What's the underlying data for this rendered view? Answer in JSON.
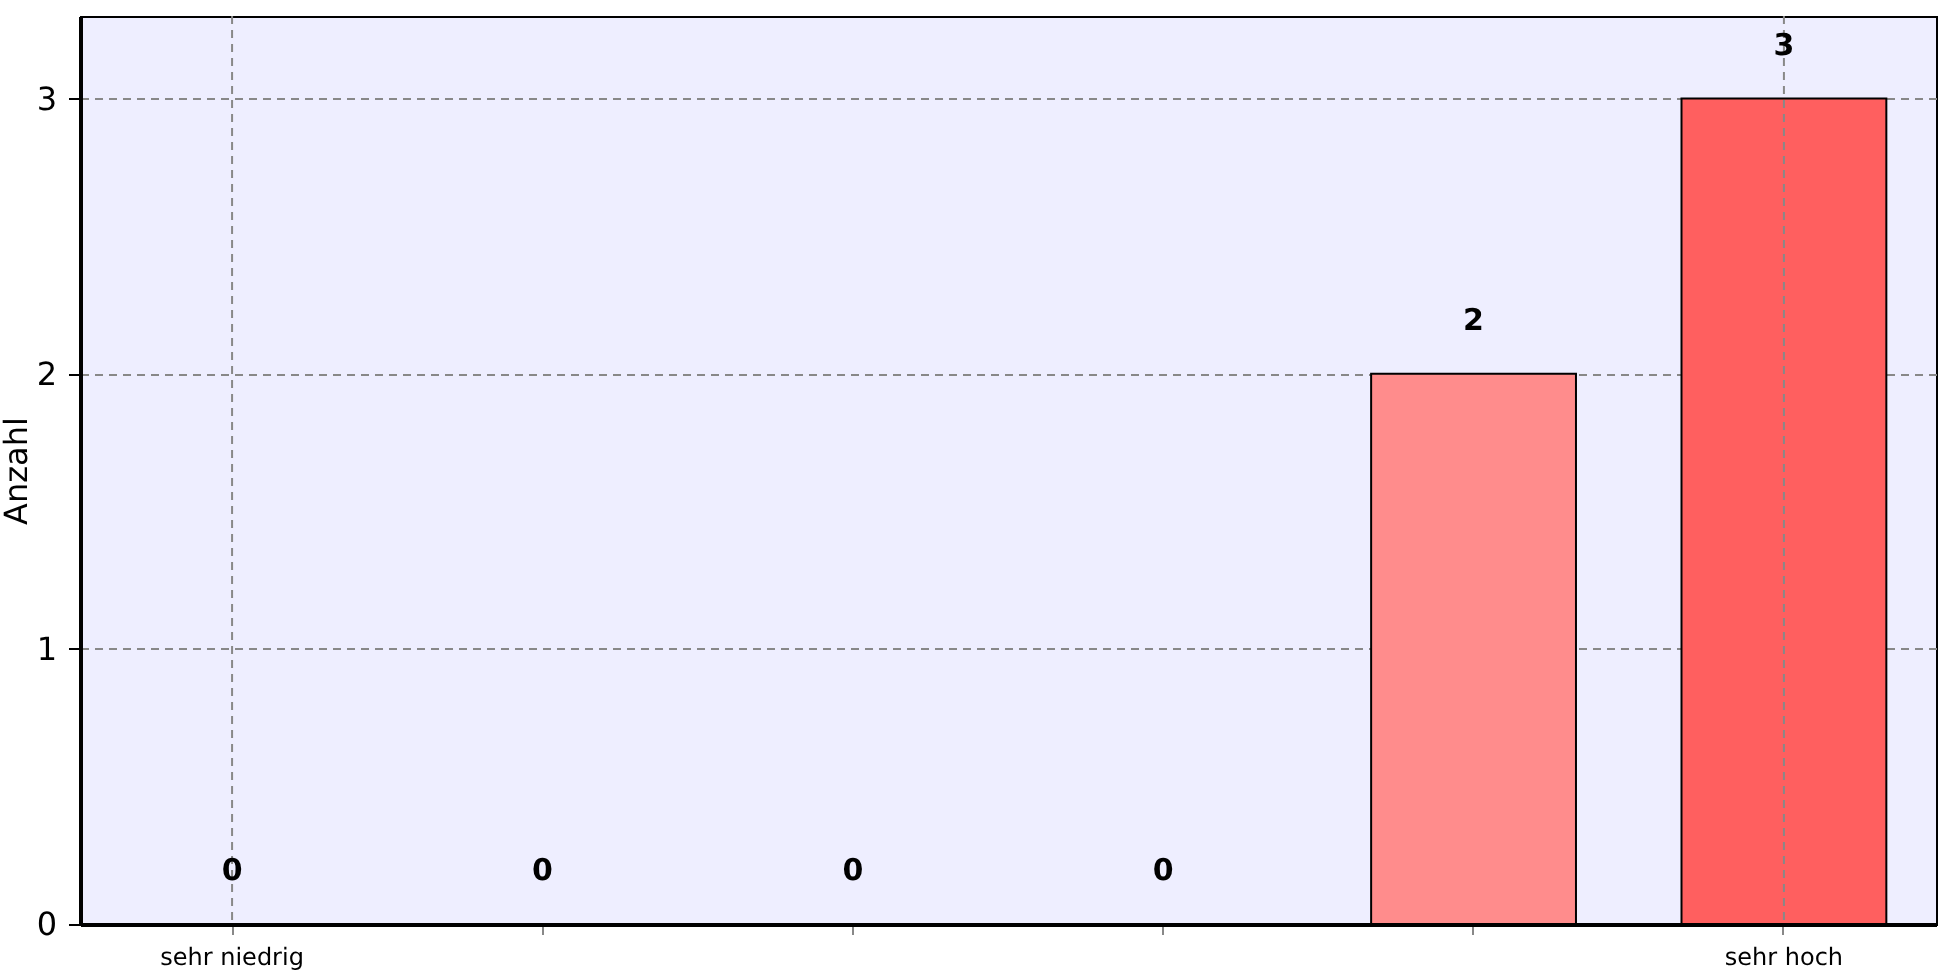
{
  "chart_data": {
    "type": "bar",
    "ylabel": "Anzahl",
    "categories": [
      "sehr niedrig",
      null,
      null,
      null,
      null,
      "sehr hoch"
    ],
    "values": [
      0,
      0,
      0,
      0,
      2,
      3
    ],
    "colors": [
      "#ff8c8c",
      "#ff8c8c",
      "#ff8c8c",
      "#ff8c8c",
      "#ff8c8c",
      "#ff5f5f"
    ],
    "ylim": [
      0,
      3.3
    ],
    "yticks": [
      0,
      1,
      2,
      3
    ],
    "grid": true,
    "data_labels": true
  }
}
